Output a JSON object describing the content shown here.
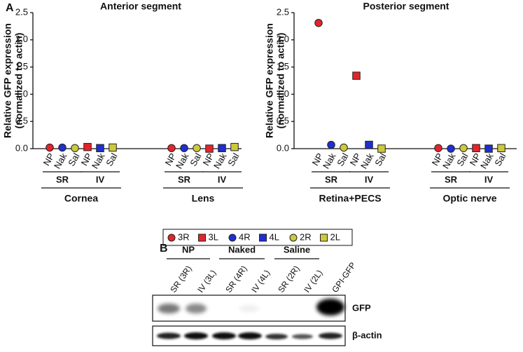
{
  "panel_labels": [
    "A",
    "B"
  ],
  "legend": [
    {
      "name": "3R",
      "color": "#e3242b",
      "marker": "circle"
    },
    {
      "name": "3L",
      "color": "#e3242b",
      "marker": "square"
    },
    {
      "name": "4R",
      "color": "#1f2fd0",
      "marker": "circle"
    },
    {
      "name": "4L",
      "color": "#1f2fd0",
      "marker": "square"
    },
    {
      "name": "2R",
      "color": "#cdc93c",
      "marker": "circle"
    },
    {
      "name": "2L",
      "color": "#cdc93c",
      "marker": "square"
    }
  ],
  "chart_data": [
    {
      "type": "scatter",
      "title": "Anterior segment",
      "ylabel": [
        "Relative GFP expression",
        "(normalized to actin)"
      ],
      "categories": [
        "Cornea",
        "Lens"
      ],
      "routes": [
        "SR",
        "IV"
      ],
      "treatments": [
        "NP",
        "Nak",
        "Sal"
      ],
      "ylim": [
        0,
        2.5
      ],
      "yticks": [
        {
          "value": 0,
          "label": "0.0"
        },
        0.5,
        {
          "value": 1,
          "label": "1.0"
        },
        1.5,
        {
          "value": 2,
          "label": "2.0"
        },
        2.5
      ],
      "series": [
        {
          "values": [
            0.02,
            0.01
          ]
        },
        {
          "values": [
            0.03,
            0.0
          ]
        },
        {
          "values": [
            0.02,
            0.01
          ]
        },
        {
          "values": [
            0.01,
            0.01
          ]
        },
        {
          "values": [
            0.01,
            0.01
          ]
        },
        {
          "values": [
            0.02,
            0.03
          ]
        }
      ]
    },
    {
      "type": "scatter",
      "title": "Posterior segment",
      "ylabel": [
        "Relative GFP expression",
        "(normalized to actin)"
      ],
      "categories": [
        "Retina+PECS",
        "Optic nerve"
      ],
      "routes": [
        "SR",
        "IV"
      ],
      "treatments": [
        "NP",
        "Nak",
        "Sal"
      ],
      "ylim": [
        0,
        2.5
      ],
      "yticks": [
        {
          "value": 0,
          "label": "0.0"
        },
        0.5,
        {
          "value": 1,
          "label": "1.0"
        },
        1.5,
        {
          "value": 2,
          "label": "2.0"
        },
        2.5
      ],
      "series": [
        {
          "values": [
            2.31,
            0.01
          ]
        },
        {
          "values": [
            1.34,
            0.01
          ]
        },
        {
          "values": [
            0.07,
            0.0
          ]
        },
        {
          "values": [
            0.07,
            0.0
          ]
        },
        {
          "values": [
            0.02,
            0.01
          ]
        },
        {
          "values": [
            0.0,
            0.01
          ]
        }
      ]
    }
  ],
  "blot": {
    "groups": [
      "NP",
      "Naked",
      "Saline"
    ],
    "lanes": [
      "SR (3R)",
      "IV (3L)",
      "SR (4R)",
      "IV (4L)",
      "SR (2R)",
      "IV (2L)",
      "GPI-GFP"
    ],
    "rows": [
      "GFP",
      "β-actin"
    ]
  }
}
